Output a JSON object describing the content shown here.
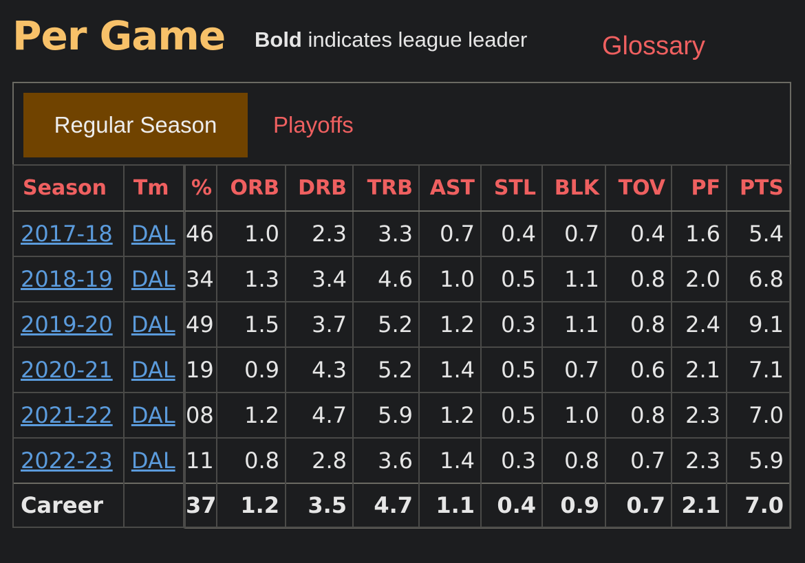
{
  "header": {
    "title": "Per Game",
    "bold_word": "Bold",
    "note_rest": " indicates league leader",
    "glossary": "Glossary"
  },
  "tabs": {
    "regular": "Regular Season",
    "playoffs": "Playoffs"
  },
  "table": {
    "frozen_headers": {
      "season": "Season",
      "team": "Tm"
    },
    "scroll_headers": [
      "%",
      "ORB",
      "DRB",
      "TRB",
      "AST",
      "STL",
      "BLK",
      "TOV",
      "PF",
      "PTS"
    ],
    "rows": [
      {
        "season": "2017-18",
        "team": "DAL",
        "values": [
          "46",
          "1.0",
          "2.3",
          "3.3",
          "0.7",
          "0.4",
          "0.7",
          "0.4",
          "1.6",
          "5.4"
        ]
      },
      {
        "season": "2018-19",
        "team": "DAL",
        "values": [
          "34",
          "1.3",
          "3.4",
          "4.6",
          "1.0",
          "0.5",
          "1.1",
          "0.8",
          "2.0",
          "6.8"
        ]
      },
      {
        "season": "2019-20",
        "team": "DAL",
        "values": [
          "49",
          "1.5",
          "3.7",
          "5.2",
          "1.2",
          "0.3",
          "1.1",
          "0.8",
          "2.4",
          "9.1"
        ]
      },
      {
        "season": "2020-21",
        "team": "DAL",
        "values": [
          "19",
          "0.9",
          "4.3",
          "5.2",
          "1.4",
          "0.5",
          "0.7",
          "0.6",
          "2.1",
          "7.1"
        ]
      },
      {
        "season": "2021-22",
        "team": "DAL",
        "values": [
          "08",
          "1.2",
          "4.7",
          "5.9",
          "1.2",
          "0.5",
          "1.0",
          "0.8",
          "2.3",
          "7.0"
        ]
      },
      {
        "season": "2022-23",
        "team": "DAL",
        "values": [
          "11",
          "0.8",
          "2.8",
          "3.6",
          "1.4",
          "0.3",
          "0.8",
          "0.7",
          "2.3",
          "5.9"
        ]
      }
    ],
    "career": {
      "label": "Career",
      "team": "",
      "values": [
        "37",
        "1.2",
        "3.5",
        "4.7",
        "1.1",
        "0.4",
        "0.9",
        "0.7",
        "2.1",
        "7.0"
      ]
    }
  }
}
